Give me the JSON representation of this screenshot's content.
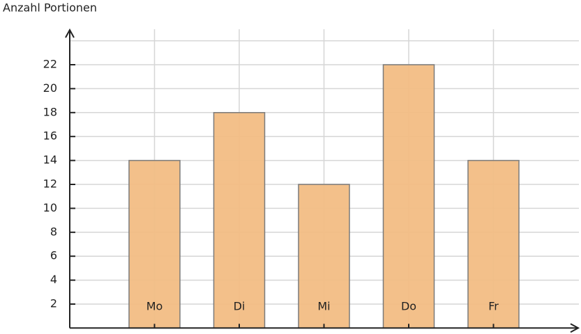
{
  "chart_data": {
    "type": "bar",
    "y_label": "Anzahl Portionen",
    "categories": [
      "Mo",
      "Di",
      "Mi",
      "Do",
      "Fr"
    ],
    "values": [
      14,
      18,
      12,
      22,
      14
    ],
    "color": "#f2bd84",
    "ylim": [
      0,
      24
    ],
    "yticks": [
      2,
      4,
      6,
      8,
      10,
      12,
      14,
      16,
      18,
      20,
      22
    ],
    "grid": true
  }
}
